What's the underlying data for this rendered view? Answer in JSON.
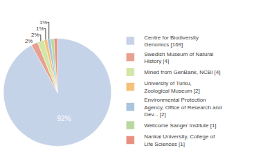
{
  "chart_data": {
    "type": "pie",
    "categories": [
      "Centre for Biodiversity\nGenomics [169]",
      "Swedish Museum of Natural\nHistory [4]",
      "Mined from GenBank, NCBI [4]",
      "University of Turku,\nZoological Museum [2]",
      "Environmental Protection\nAgency, Office of Research and\nDev... [2]",
      "Wellcome Sanger Institute [1]",
      "Nankai University, College of\nLife Sciences [1]"
    ],
    "values": [
      92,
      2,
      2,
      1,
      1,
      1,
      1
    ],
    "value_labels": [
      "92%",
      "2%",
      "2%",
      "1%",
      "1%",
      null,
      null
    ],
    "data_labels": true,
    "colors": [
      "#c5d3e8",
      "#e8a090",
      "#d4e6a5",
      "#f5c07a",
      "#a8c4de",
      "#b8d8a0",
      "#e89080"
    ],
    "legend": "right"
  }
}
